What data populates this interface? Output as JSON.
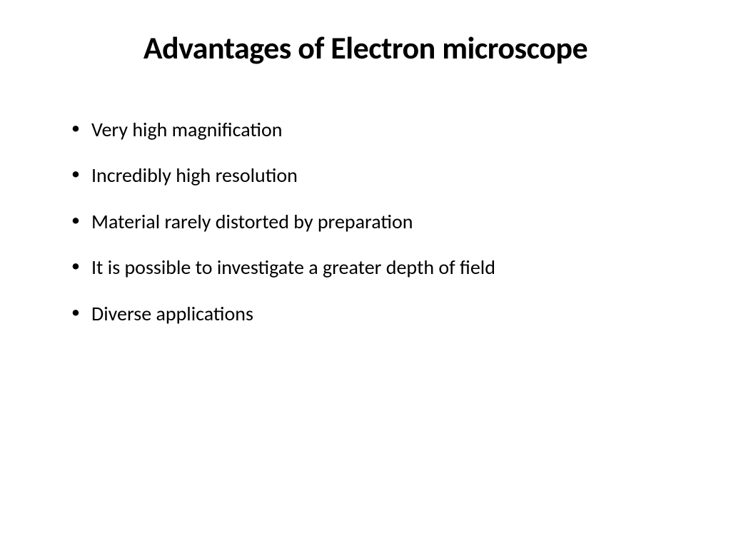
{
  "slide": {
    "title": "Advantages of Electron microscope",
    "bullets": [
      "Very high magnification",
      "Incredibly high resolution",
      "Material rarely distorted by preparation",
      "It is possible to investigate a greater depth of field",
      "Diverse applications"
    ]
  },
  "styling": {
    "background_color": "#ffffff",
    "text_color": "#000000",
    "title_fontsize": 44,
    "title_fontweight": 700,
    "bullet_fontsize": 28,
    "bullet_fontweight": 400,
    "font_family": "Calibri",
    "slide_width": 1024,
    "slide_height": 768
  }
}
